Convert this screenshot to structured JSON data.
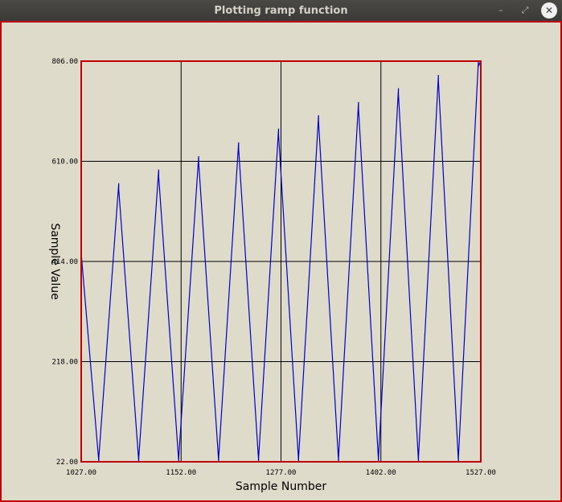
{
  "window": {
    "title": "Plotting ramp function",
    "min_symbol": "–",
    "max_symbol": "⤢",
    "close_symbol": "✕"
  },
  "chart_data": {
    "type": "line",
    "xlabel": "Sample Number",
    "ylabel": "Sample Value",
    "xlim": [
      1027,
      1527
    ],
    "ylim": [
      22,
      806
    ],
    "xticks": [
      "1027.00",
      "1152.00",
      "1277.00",
      "1402.00",
      "1527.00"
    ],
    "yticks": [
      "22.00",
      "218.00",
      "414.00",
      "610.00",
      "806.00"
    ],
    "grid": true,
    "colors": {
      "frame": "#c00000",
      "line": "#0000cc",
      "grid": "#000000"
    },
    "series": [
      {
        "x": [
          1027,
          1027,
          1049,
          1049,
          1074,
          1074,
          1099,
          1099,
          1124,
          1124,
          1149,
          1149,
          1174,
          1174,
          1199,
          1199,
          1224,
          1224,
          1249,
          1249,
          1274,
          1274,
          1299,
          1299,
          1324,
          1324,
          1349,
          1349,
          1374,
          1374,
          1399,
          1399,
          1424,
          1424,
          1449,
          1449,
          1474,
          1474,
          1499,
          1499,
          1524,
          1524,
          1527
        ],
        "y": [
          470,
          430,
          22,
          30,
          567,
          555,
          22,
          30,
          594,
          580,
          22,
          30,
          620,
          608,
          22,
          30,
          647,
          635,
          22,
          30,
          674,
          662,
          22,
          30,
          700,
          688,
          22,
          30,
          726,
          714,
          22,
          30,
          753,
          741,
          22,
          30,
          779,
          767,
          22,
          30,
          806,
          796,
          806
        ]
      }
    ]
  }
}
